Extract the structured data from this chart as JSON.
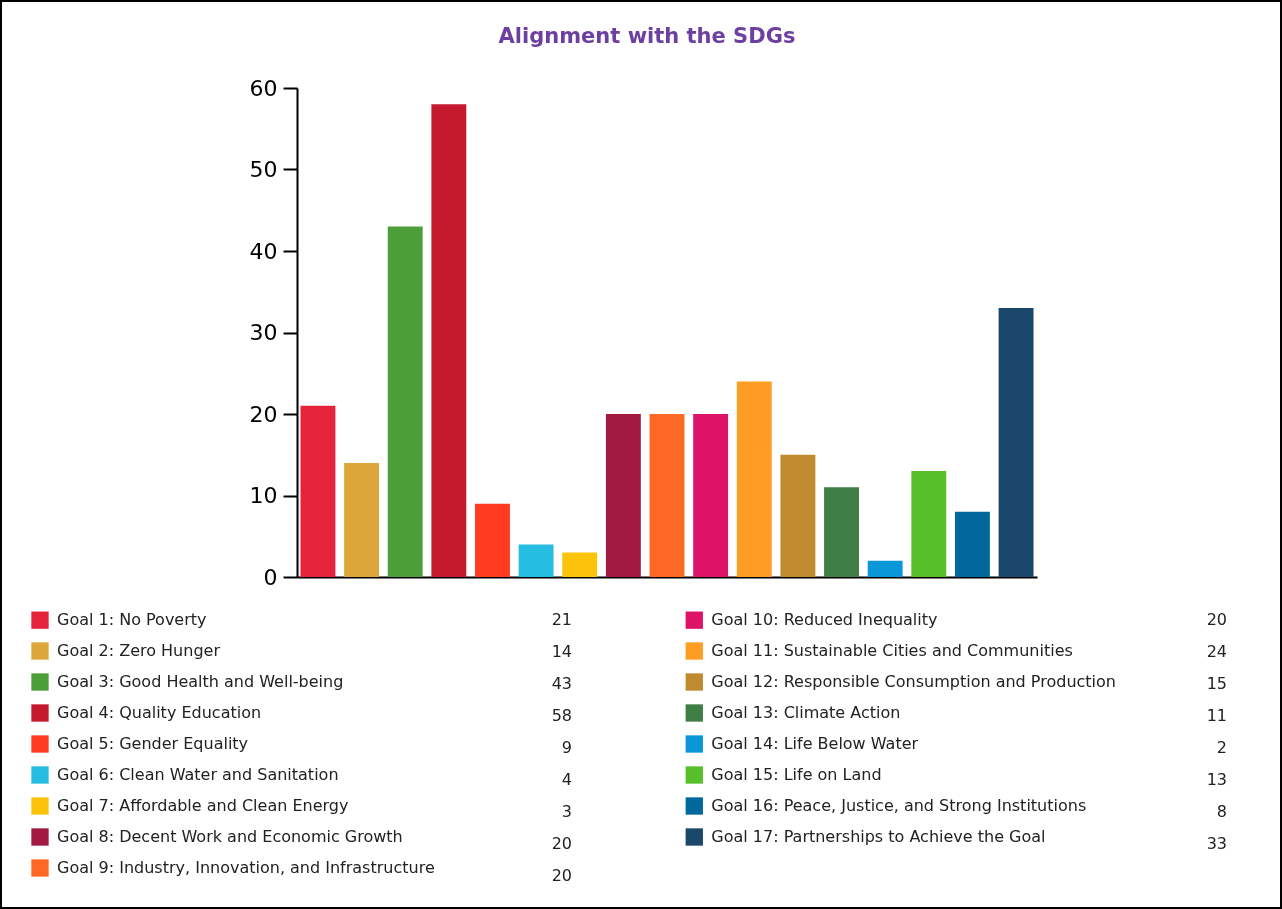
{
  "chart_data": {
    "type": "bar",
    "title": "Alignment with the SDGs",
    "categories": [
      null,
      null,
      null,
      null,
      null,
      null,
      null,
      null,
      null,
      null,
      null,
      null,
      null,
      null,
      null,
      null,
      null
    ],
    "series": [
      {
        "name": "Goal 1: No Poverty",
        "color": "#e5243b",
        "values": [
          21,
          null,
          null,
          null,
          null,
          null,
          null,
          null,
          null,
          null,
          null,
          null,
          null,
          null,
          null,
          null,
          null
        ]
      },
      {
        "name": "Goal 2: Zero Hunger",
        "color": "#dda63a",
        "values": [
          null,
          14,
          null,
          null,
          null,
          null,
          null,
          null,
          null,
          null,
          null,
          null,
          null,
          null,
          null,
          null,
          null
        ]
      },
      {
        "name": "Goal 3: Good Health and Well-being",
        "color": "#4c9f38",
        "values": [
          null,
          null,
          43,
          null,
          null,
          null,
          null,
          null,
          null,
          null,
          null,
          null,
          null,
          null,
          null,
          null,
          null
        ]
      },
      {
        "name": "Goal 4: Quality Education",
        "color": "#c5192d",
        "values": [
          null,
          null,
          null,
          58,
          null,
          null,
          null,
          null,
          null,
          null,
          null,
          null,
          null,
          null,
          null,
          null,
          null
        ]
      },
      {
        "name": "Goal 5: Gender Equality",
        "color": "#ff3a21",
        "values": [
          null,
          null,
          null,
          null,
          9,
          null,
          null,
          null,
          null,
          null,
          null,
          null,
          null,
          null,
          null,
          null,
          null
        ]
      },
      {
        "name": "Goal 6: Clean Water and Sanitation",
        "color": "#26bde2",
        "values": [
          null,
          null,
          null,
          null,
          null,
          4,
          null,
          null,
          null,
          null,
          null,
          null,
          null,
          null,
          null,
          null,
          null
        ]
      },
      {
        "name": "Goal 7: Affordable and Clean Energy",
        "color": "#fcc30b",
        "values": [
          null,
          null,
          null,
          null,
          null,
          null,
          3,
          null,
          null,
          null,
          null,
          null,
          null,
          null,
          null,
          null,
          null
        ]
      },
      {
        "name": "Goal 8: Decent Work and Economic Growth",
        "color": "#a21942",
        "values": [
          null,
          null,
          null,
          null,
          null,
          null,
          null,
          20,
          null,
          null,
          null,
          null,
          null,
          null,
          null,
          null,
          null
        ]
      },
      {
        "name": "Goal 9: Industry, Innovation, and Infrastructure",
        "color": "#fd6925",
        "values": [
          null,
          null,
          null,
          null,
          null,
          null,
          null,
          null,
          20,
          null,
          null,
          null,
          null,
          null,
          null,
          null,
          null
        ]
      },
      {
        "name": "Goal 10: Reduced Inequality",
        "color": "#dd1367",
        "values": [
          null,
          null,
          null,
          null,
          null,
          null,
          null,
          null,
          null,
          20,
          null,
          null,
          null,
          null,
          null,
          null,
          null
        ]
      },
      {
        "name": "Goal 11: Sustainable Cities and Communities",
        "color": "#fd9d24",
        "values": [
          null,
          null,
          null,
          null,
          null,
          null,
          null,
          null,
          null,
          null,
          24,
          null,
          null,
          null,
          null,
          null,
          null
        ]
      },
      {
        "name": "Goal 12: Responsible Consumption and Production",
        "color": "#bf8b2e",
        "values": [
          null,
          null,
          null,
          null,
          null,
          null,
          null,
          null,
          null,
          null,
          null,
          15,
          null,
          null,
          null,
          null,
          null
        ]
      },
      {
        "name": "Goal 13: Climate Action",
        "color": "#3f7e44",
        "values": [
          null,
          null,
          null,
          null,
          null,
          null,
          null,
          null,
          null,
          null,
          null,
          null,
          11,
          null,
          null,
          null,
          null
        ]
      },
      {
        "name": "Goal 14: Life Below Water",
        "color": "#0a97d9",
        "values": [
          null,
          null,
          null,
          null,
          null,
          null,
          null,
          null,
          null,
          null,
          null,
          null,
          null,
          2,
          null,
          null,
          null
        ]
      },
      {
        "name": "Goal 15: Life on Land",
        "color": "#56c02b",
        "values": [
          null,
          null,
          null,
          null,
          null,
          null,
          null,
          null,
          null,
          null,
          null,
          null,
          null,
          null,
          13,
          null,
          null
        ]
      },
      {
        "name": "Goal 16: Peace, Justice, and Strong Institutions",
        "color": "#00689d",
        "values": [
          null,
          null,
          null,
          null,
          null,
          null,
          null,
          null,
          null,
          null,
          null,
          null,
          null,
          null,
          null,
          8,
          null
        ]
      },
      {
        "name": "Goal 17: Partnerships to Achieve the Goal",
        "color": "#19486a",
        "values": [
          null,
          null,
          null,
          null,
          null,
          null,
          null,
          null,
          null,
          null,
          null,
          null,
          null,
          null,
          null,
          null,
          33
        ]
      }
    ],
    "annotations": [
      "21",
      "14",
      "43",
      "58",
      "9",
      "4",
      "3",
      "20",
      "20",
      "20",
      "24",
      "15",
      "11",
      "2",
      "13",
      "8",
      "33"
    ],
    "ylim": [
      0,
      60
    ],
    "yticks": [
      0,
      10,
      20,
      30,
      40,
      50,
      60
    ],
    "tick_labels": "y",
    "legend": "bottom"
  }
}
